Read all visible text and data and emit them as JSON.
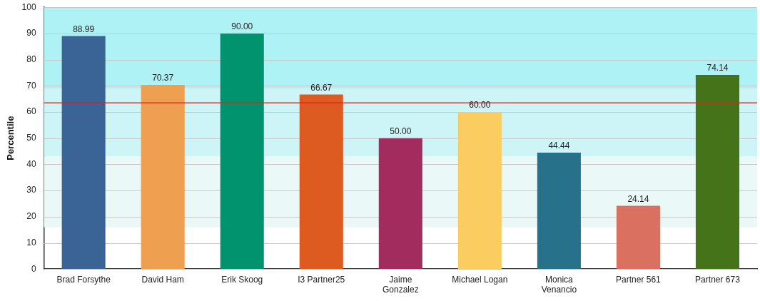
{
  "chart_data": {
    "type": "bar",
    "ylabel": "Percentile",
    "categories": [
      "Brad Forsythe",
      "David Ham",
      "Erik Skoog",
      "I3 Partner25",
      "Jaime Gonzalez",
      "Michael Logan",
      "Monica Venancio",
      "Partner 561",
      "Partner 673"
    ],
    "values": [
      88.99,
      70.37,
      90.0,
      66.67,
      50.0,
      60.0,
      44.44,
      24.14,
      74.14
    ],
    "value_labels": [
      "88.99",
      "70.37",
      "90.00",
      "66.67",
      "50.00",
      "60.00",
      "44.44",
      "24.14",
      "74.14"
    ],
    "colors": [
      "#3a6496",
      "#eea050",
      "#00936e",
      "#dd5a20",
      "#a22c5e",
      "#fbcd60",
      "#27718a",
      "#da7060",
      "#45731a"
    ],
    "ylim": [
      0,
      100
    ],
    "yticks": [
      0,
      10,
      20,
      30,
      40,
      50,
      60,
      70,
      80,
      90,
      100
    ],
    "grid": "y",
    "legend": false,
    "bands": [
      {
        "axis": "y",
        "from": 69,
        "to": 100,
        "color": "#aef2f6"
      },
      {
        "axis": "y",
        "from": 43,
        "to": 69,
        "color": "#cdf5f8"
      },
      {
        "axis": "y",
        "from": 16,
        "to": 43,
        "color": "#eaf8f8"
      }
    ],
    "ref_lines": [
      {
        "axis": "y",
        "value": 63.5,
        "color": "#e02020"
      }
    ]
  }
}
